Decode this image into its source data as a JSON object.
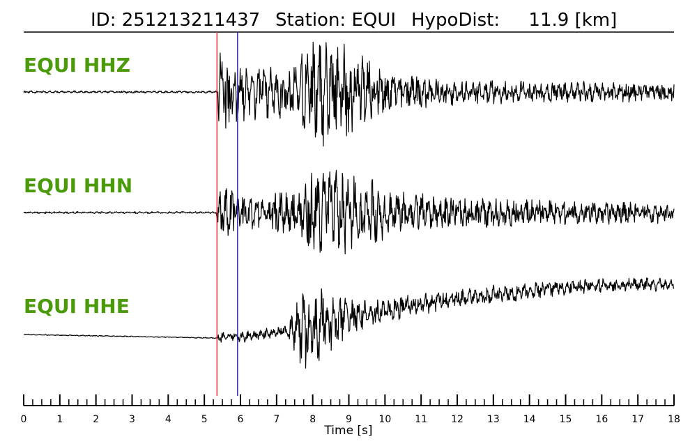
{
  "header": {
    "id_text": "ID: 251213211437",
    "station_text": "Station: EQUI",
    "dist_text": "HypoDist:     11.9 [km]"
  },
  "chart_data": {
    "type": "line",
    "xlabel": "Time [s]",
    "xlim": [
      0,
      18
    ],
    "x_ticks": [
      "0",
      "1",
      "2",
      "3",
      "4",
      "5",
      "6",
      "7",
      "8",
      "9",
      "10",
      "11",
      "12",
      "13",
      "14",
      "15",
      "16",
      "17",
      "18"
    ],
    "minor_tick_step": 0.25,
    "grid": false,
    "picks": [
      {
        "phase": "P",
        "time": 5.35,
        "color": "#e8333a"
      },
      {
        "phase": "S",
        "time": 5.92,
        "color": "#2a2ab8"
      }
    ],
    "series": [
      {
        "name": "EQUI HHZ",
        "color": "#000000",
        "envelope": [
          [
            0,
            0.02
          ],
          [
            5.33,
            0.02
          ],
          [
            5.4,
            0.85
          ],
          [
            6.0,
            0.5
          ],
          [
            7.6,
            0.45
          ],
          [
            7.8,
            0.9
          ],
          [
            8.2,
            1.0
          ],
          [
            8.8,
            0.85
          ],
          [
            9.6,
            0.55
          ],
          [
            10.5,
            0.3
          ],
          [
            12,
            0.22
          ],
          [
            18,
            0.16
          ]
        ],
        "trend": [
          [
            0,
            0.0
          ],
          [
            18,
            0.0
          ]
        ]
      },
      {
        "name": "EQUI HHN",
        "color": "#000000",
        "envelope": [
          [
            0,
            0.02
          ],
          [
            5.33,
            0.02
          ],
          [
            5.4,
            0.55
          ],
          [
            6.2,
            0.35
          ],
          [
            7.6,
            0.5
          ],
          [
            7.8,
            0.85
          ],
          [
            8.3,
            1.0
          ],
          [
            9.2,
            0.75
          ],
          [
            10.5,
            0.4
          ],
          [
            12,
            0.3
          ],
          [
            18,
            0.2
          ]
        ],
        "trend": [
          [
            0,
            0.0
          ],
          [
            18,
            0.0
          ]
        ]
      },
      {
        "name": "EQUI HHE",
        "color": "#000000",
        "envelope": [
          [
            0,
            0.01
          ],
          [
            5.33,
            0.01
          ],
          [
            5.4,
            0.12
          ],
          [
            7.3,
            0.12
          ],
          [
            7.7,
            0.85
          ],
          [
            8.1,
            0.9
          ],
          [
            8.6,
            0.55
          ],
          [
            9.5,
            0.3
          ],
          [
            11,
            0.22
          ],
          [
            18,
            0.14
          ]
        ],
        "trend": [
          [
            0,
            0.0
          ],
          [
            5.3,
            -0.07
          ],
          [
            6.0,
            -0.05
          ],
          [
            7.5,
            0.1
          ],
          [
            9,
            0.35
          ],
          [
            11,
            0.6
          ],
          [
            13,
            0.8
          ],
          [
            15,
            0.95
          ],
          [
            17,
            1.0
          ],
          [
            18,
            0.98
          ]
        ]
      }
    ]
  }
}
